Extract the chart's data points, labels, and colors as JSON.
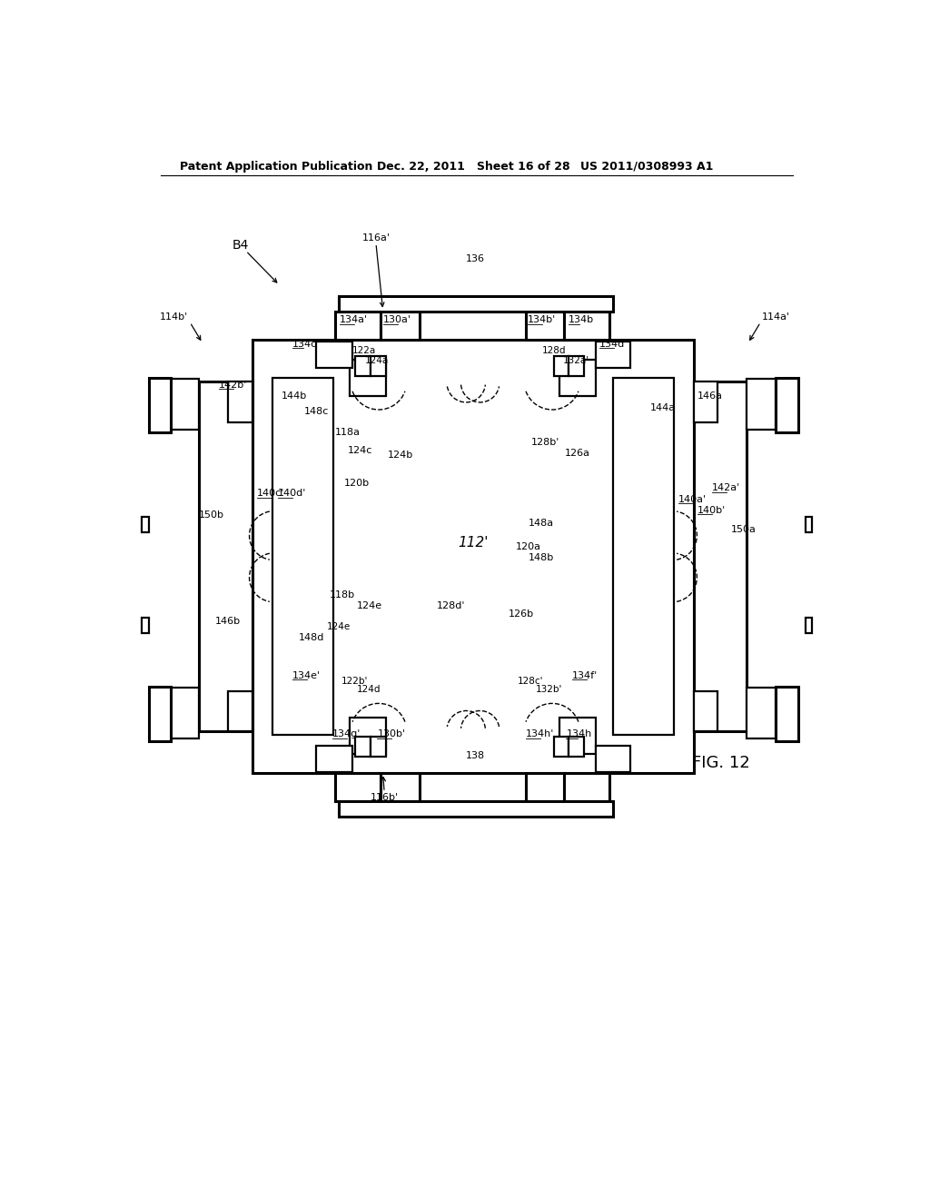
{
  "bg_color": "#ffffff",
  "line_color": "#000000",
  "header_left": "Patent Application Publication",
  "header_mid": "Dec. 22, 2011   Sheet 16 of 28",
  "header_right": "US 2011/0308993 A1",
  "fig_label": "FIG. 12"
}
